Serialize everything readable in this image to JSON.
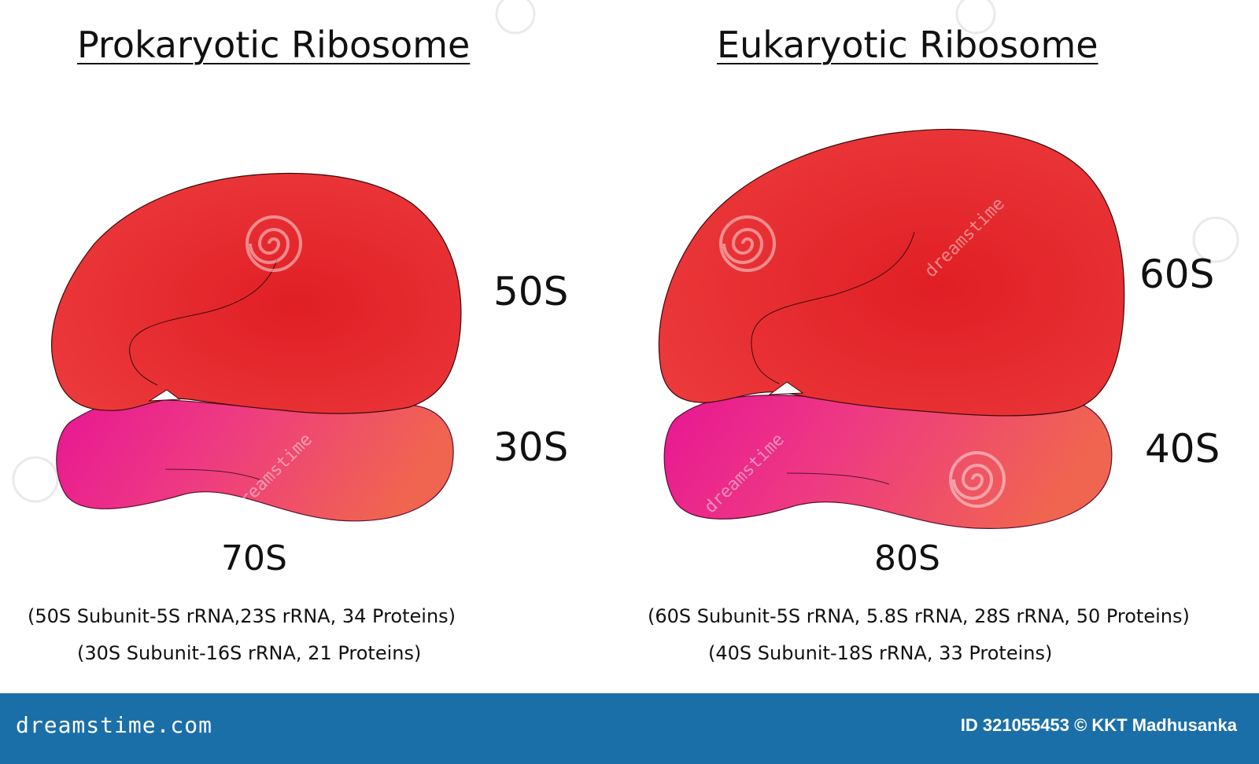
{
  "titles": {
    "left": "Prokaryotic Ribosome",
    "right": "Eukaryotic Ribosome"
  },
  "prokaryotic": {
    "large_subunit": "50S",
    "small_subunit": "30S",
    "total": "70S",
    "note_large": "(50S Subunit-5S rRNA,23S rRNA, 34 Proteins)",
    "note_small": "(30S Subunit-16S rRNA, 21 Proteins)"
  },
  "eukaryotic": {
    "large_subunit": "60S",
    "small_subunit": "40S",
    "total": "80S",
    "note_large": "(60S Subunit-5S rRNA, 5.8S rRNA, 28S rRNA, 50 Proteins)",
    "note_small": "(40S Subunit-18S rRNA, 33 Proteins)"
  },
  "colors": {
    "large_subunit": "#e3262c",
    "small_subunit_start": "#e81694",
    "small_subunit_end": "#f0654f",
    "footer": "#1b6fa8"
  },
  "footer": {
    "brand": "dreamstime.com",
    "credit": "ID 321055453 © KKT Madhusanka"
  },
  "watermark": {
    "text": "dreamstime",
    "icon": "swirl-logo-icon"
  }
}
